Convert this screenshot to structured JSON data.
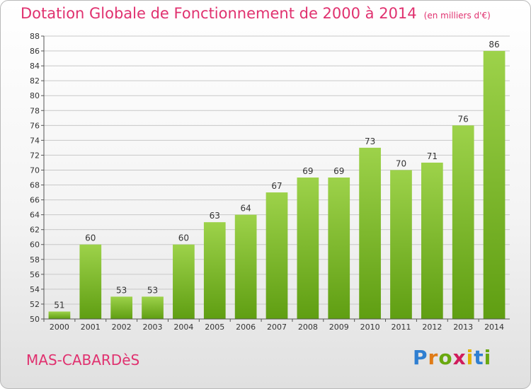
{
  "header": {
    "title": "Dotation Globale de Fonctionnement de 2000 à 2014",
    "unit": "(en milliers d'€)"
  },
  "footer": {
    "town": "MAS-CABARDèS",
    "logo": "Proxiti",
    "logo_colors": [
      "#2f7fd1",
      "#e07b16",
      "#69a80f",
      "#d01c5c",
      "#e0b000",
      "#2f7fd1",
      "#69a80f"
    ]
  },
  "colors": {
    "accent": "#e0316f",
    "bar_light": "#9dd24a",
    "bar_dark": "#5f9e12",
    "grid": "#c8c8c8"
  },
  "chart_data": {
    "type": "bar",
    "title": "Dotation Globale de Fonctionnement de 2000 à 2014",
    "subtitle": "(en milliers d'€)",
    "categories": [
      "2000",
      "2001",
      "2002",
      "2003",
      "2004",
      "2005",
      "2006",
      "2007",
      "2008",
      "2009",
      "2010",
      "2011",
      "2012",
      "2013",
      "2014"
    ],
    "values": [
      51,
      60,
      53,
      53,
      60,
      63,
      64,
      67,
      69,
      69,
      73,
      70,
      71,
      76,
      86
    ],
    "ylim": [
      50,
      88
    ],
    "yticks": [
      50,
      52,
      54,
      56,
      58,
      60,
      62,
      64,
      66,
      68,
      70,
      72,
      74,
      76,
      78,
      80,
      82,
      84,
      86,
      88
    ],
    "xlabel": "",
    "ylabel": "",
    "grid": true,
    "legend": "none"
  }
}
